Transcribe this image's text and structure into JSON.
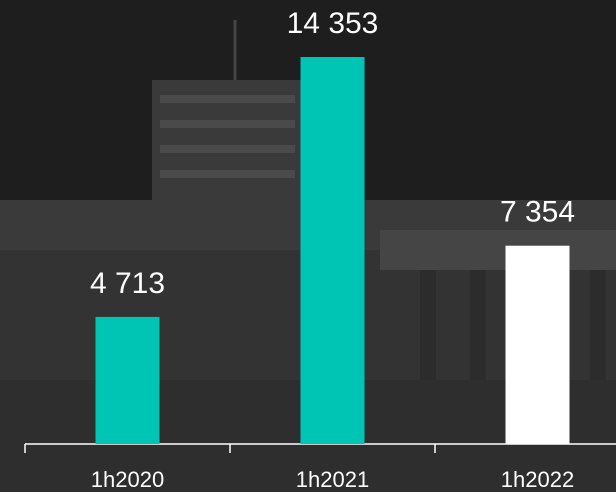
{
  "chart_data": {
    "type": "bar",
    "categories": [
      "1h2020",
      "1h2021",
      "1h2022"
    ],
    "values": [
      4713,
      14353,
      7354
    ],
    "value_labels": [
      "4 713",
      "14 353",
      "7 354"
    ],
    "colors": [
      "#00c4b4",
      "#00c4b4",
      "#ffffff"
    ]
  }
}
